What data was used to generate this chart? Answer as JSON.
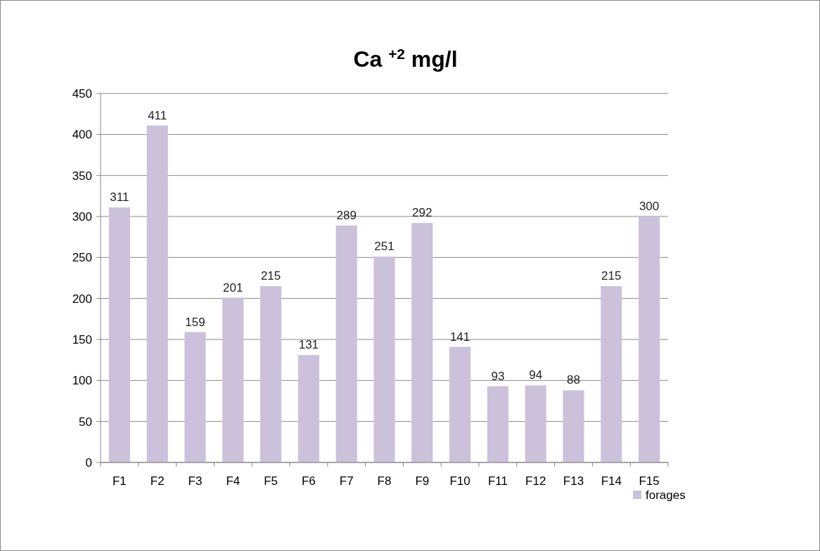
{
  "chart_data": {
    "type": "bar",
    "title": "Ca $^{+2}$ mg/l",
    "categories": [
      "F1",
      "F2",
      "F3",
      "F4",
      "F5",
      "F6",
      "F7",
      "F8",
      "F9",
      "F10",
      "F11",
      "F12",
      "F13",
      "F14",
      "F15"
    ],
    "series": [
      {
        "name": "forages",
        "color": "#ccc1da",
        "values": [
          311,
          411,
          159,
          201,
          215,
          131,
          289,
          251,
          292,
          141,
          93,
          94,
          88,
          215,
          300
        ]
      }
    ],
    "ylim": [
      0,
      450
    ],
    "yticks": [
      0,
      50,
      100,
      150,
      200,
      250,
      300,
      350,
      400,
      450
    ],
    "grid": "y",
    "legend": "bottom right",
    "data_labels": true
  }
}
